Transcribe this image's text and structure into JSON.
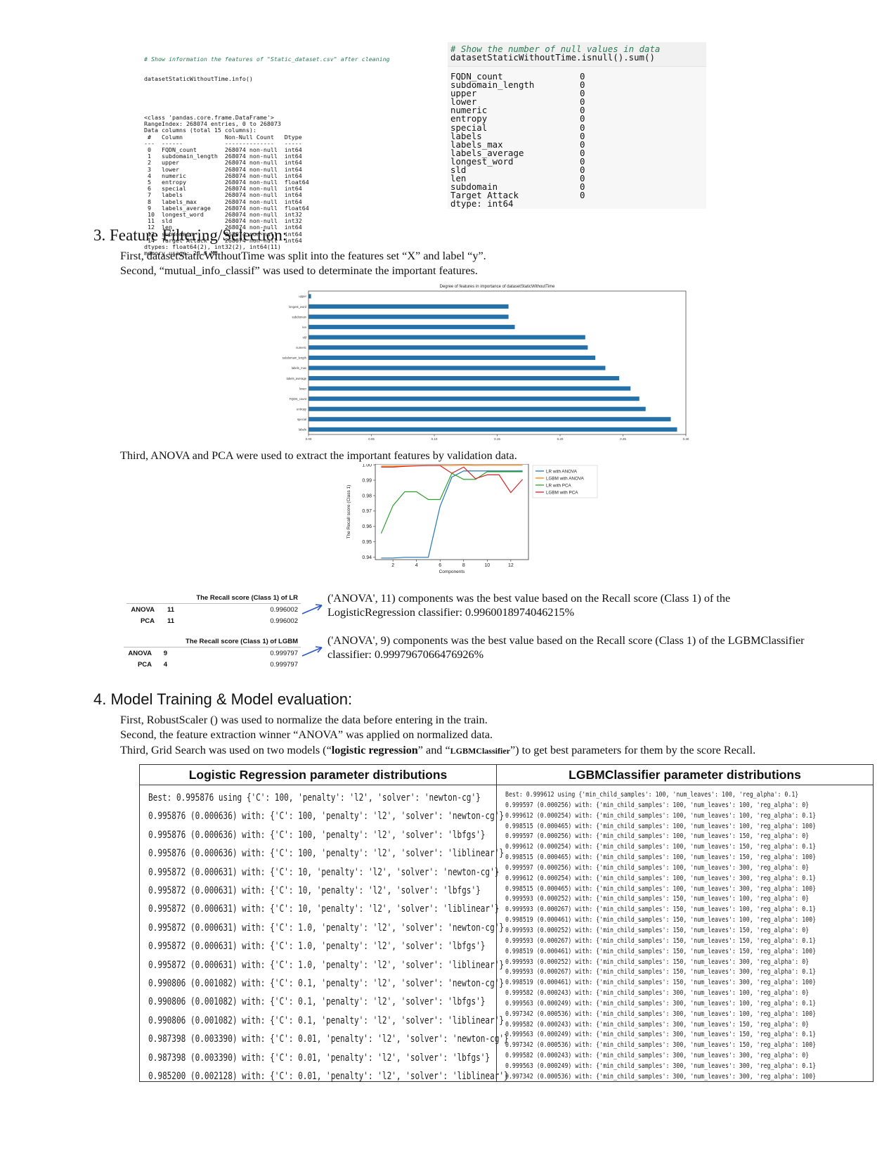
{
  "info_panel": {
    "comment": "# Show information the features of \"Static_dataset.csv\" after cleaning",
    "call": "datasetStaticWithoutTime.info()",
    "lines": [
      "<class 'pandas.core.frame.DataFrame'>",
      "RangeIndex: 268074 entries, 0 to 268073",
      "Data columns (total 15 columns):",
      " #   Column            Non-Null Count   Dtype",
      "---  ------            --------------   -----",
      " 0   FQDN_count        268074 non-null  int64",
      " 1   subdomain_length  268074 non-null  int64",
      " 2   upper             268074 non-null  int64",
      " 3   lower             268074 non-null  int64",
      " 4   numeric           268074 non-null  int64",
      " 5   entropy           268074 non-null  float64",
      " 6   special           268074 non-null  int64",
      " 7   labels            268074 non-null  int64",
      " 8   labels_max        268074 non-null  int64",
      " 9   labels_average    268074 non-null  float64",
      " 10  longest_word      268074 non-null  int32",
      " 11  sld               268074 non-null  int32",
      " 12  len               268074 non-null  int64",
      " 13  subdomain         268074 non-null  int64",
      " 14  Target Attack     268074 non-null  int64",
      "dtypes: float64(2), int32(2), int64(11)",
      "memory usage: 28.6 MB"
    ]
  },
  "null_panel": {
    "comment": "# Show the number of null values in data",
    "call": "datasetStaticWithoutTime.isnull().sum()",
    "rows": [
      {
        "field": "FQDN_count",
        "count": "0"
      },
      {
        "field": "subdomain_length",
        "count": "0"
      },
      {
        "field": "upper",
        "count": "0"
      },
      {
        "field": "lower",
        "count": "0"
      },
      {
        "field": "numeric",
        "count": "0"
      },
      {
        "field": "entropy",
        "count": "0"
      },
      {
        "field": "special",
        "count": "0"
      },
      {
        "field": "labels",
        "count": "0"
      },
      {
        "field": "labels_max",
        "count": "0"
      },
      {
        "field": "labels_average",
        "count": "0"
      },
      {
        "field": "longest_word",
        "count": "0"
      },
      {
        "field": "sld",
        "count": "0"
      },
      {
        "field": "len",
        "count": "0"
      },
      {
        "field": "subdomain",
        "count": "0"
      },
      {
        "field": "Target Attack",
        "count": "0"
      }
    ],
    "dtype": "dtype: int64"
  },
  "section3": {
    "heading": "3.   Feature Filtering/Selection:",
    "p1": "First, datasetStaticWithoutTime was split into the features set “X” and label “y”.",
    "p2": "Second, “mutual_info_classif” was used to determinate the important features.",
    "p3": "Third, ANOVA and PCA were used to extract the important features by validation data."
  },
  "chart_data": [
    {
      "type": "bar",
      "orientation": "horizontal",
      "title": "Degree of features in importance of datasetStaticWithoutTime",
      "categories": [
        "upper",
        "longest_word",
        "subdomain",
        "len",
        "sld",
        "numeric",
        "subdomain_length",
        "labels_max",
        "labels_average",
        "lower",
        "FQDN_count",
        "entropy",
        "special",
        "labels"
      ],
      "values": [
        0.002,
        0.159,
        0.159,
        0.164,
        0.22,
        0.222,
        0.228,
        0.236,
        0.247,
        0.256,
        0.263,
        0.268,
        0.288,
        0.293
      ],
      "xlim": [
        0,
        0.3
      ],
      "xticks": [
        "0.00",
        "0.05",
        "0.10",
        "0.15",
        "0.20",
        "0.25",
        "0.30"
      ],
      "color": "#2470a8",
      "grid": false
    },
    {
      "type": "line",
      "xlabel": "Components",
      "ylabel": "The Recall score (Class 1)",
      "xlim": [
        0.5,
        13.5
      ],
      "ylim": [
        0.9385,
        1.0005
      ],
      "xticks": [
        "2",
        "4",
        "6",
        "8",
        "10",
        "12"
      ],
      "yticks": [
        "0.94",
        "0.95",
        "0.96",
        "0.97",
        "0.98",
        "0.99",
        "1.00"
      ],
      "x": [
        1,
        2,
        3,
        4,
        5,
        6,
        7,
        8,
        9,
        10,
        11,
        12,
        13
      ],
      "legend_position": "outside-right",
      "series": [
        {
          "name": "LR with ANOVA",
          "color": "#1f77b4",
          "values": [
            0.9395,
            0.9395,
            0.94,
            0.94,
            0.94,
            0.973,
            0.992,
            0.996,
            0.996,
            0.996,
            0.996,
            0.996,
            0.996
          ]
        },
        {
          "name": "LGBM with ANOVA",
          "color": "#ff7f0e",
          "values": [
            0.9992,
            0.9992,
            0.9993,
            0.9994,
            0.9995,
            0.9996,
            0.9996,
            0.9998,
            0.9996,
            0.9997,
            0.9997,
            0.9997,
            0.9997
          ]
        },
        {
          "name": "LR with PCA",
          "color": "#2ca02c",
          "values": [
            0.9555,
            0.9735,
            0.9825,
            0.9825,
            0.9775,
            0.9775,
            0.9945,
            0.9905,
            0.9905,
            0.9955,
            0.9955,
            0.9955,
            0.9955
          ]
        },
        {
          "name": "LGBM with PCA",
          "color": "#d62728",
          "values": [
            0.9985,
            0.9985,
            0.999,
            0.9993,
            0.9995,
            0.9995,
            0.9945,
            0.9985,
            0.991,
            0.9935,
            0.9935,
            0.982,
            0.9905
          ]
        }
      ]
    }
  ],
  "recall_lr": {
    "title": "The Recall score (Class 1) of LR",
    "rows": [
      {
        "name": "ANOVA",
        "n": "11",
        "score": "0.996002"
      },
      {
        "name": "PCA",
        "n": "11",
        "score": "0.996002"
      }
    ],
    "note": "('ANOVA', 11) components was the best value based on the Recall score (Class 1) of the LogisticRegression classifier: 0.9960018974046215%"
  },
  "recall_lgbm": {
    "title": "The Recall score (Class 1) of LGBM",
    "rows": [
      {
        "name": "ANOVA",
        "n": "9",
        "score": "0.999797"
      },
      {
        "name": "PCA",
        "n": "4",
        "score": "0.999797"
      }
    ],
    "note": "('ANOVA', 9) components was the best value based on the Recall score (Class 1) of the LGBMClassifier classifier: 0.9997967066476926%"
  },
  "section4": {
    "heading": "4.   Model Training & Model evaluation:",
    "p1": "First, RobustScaler () was used to normalize the data before entering in the train.",
    "p2": "Second, the feature extraction winner “ANOVA” was applied on normalized data.",
    "p3_a": "Third, Grid Search was used on two models (“",
    "p3_b": "logistic regression",
    "p3_c": "” and “",
    "p3_d": "LGBMClassifier",
    "p3_e": "”) to get best parameters for them by the score Recall."
  },
  "param_table": {
    "left_header": "Logistic Regression parameter distributions",
    "right_header": "LGBMClassifier  parameter distributions",
    "left_lines": [
      "Best: 0.995876 using {'C': 100, 'penalty': 'l2', 'solver': 'newton-cg'}",
      "0.995876 (0.000636) with: {'C': 100, 'penalty': 'l2', 'solver': 'newton-cg'}",
      "0.995876 (0.000636) with: {'C': 100, 'penalty': 'l2', 'solver': 'lbfgs'}",
      "0.995876 (0.000636) with: {'C': 100, 'penalty': 'l2', 'solver': 'liblinear'}",
      "0.995872 (0.000631) with: {'C': 10, 'penalty': 'l2', 'solver': 'newton-cg'}",
      "0.995872 (0.000631) with: {'C': 10, 'penalty': 'l2', 'solver': 'lbfgs'}",
      "0.995872 (0.000631) with: {'C': 10, 'penalty': 'l2', 'solver': 'liblinear'}",
      "0.995872 (0.000631) with: {'C': 1.0, 'penalty': 'l2', 'solver': 'newton-cg'}",
      "0.995872 (0.000631) with: {'C': 1.0, 'penalty': 'l2', 'solver': 'lbfgs'}",
      "0.995872 (0.000631) with: {'C': 1.0, 'penalty': 'l2', 'solver': 'liblinear'}",
      "0.990806 (0.001082) with: {'C': 0.1, 'penalty': 'l2', 'solver': 'newton-cg'}",
      "0.990806 (0.001082) with: {'C': 0.1, 'penalty': 'l2', 'solver': 'lbfgs'}",
      "0.990806 (0.001082) with: {'C': 0.1, 'penalty': 'l2', 'solver': 'liblinear'}",
      "0.987398 (0.003390) with: {'C': 0.01, 'penalty': 'l2', 'solver': 'newton-cg'}",
      "0.987398 (0.003390) with: {'C': 0.01, 'penalty': 'l2', 'solver': 'lbfgs'}",
      "0.985200 (0.002128) with: {'C': 0.01, 'penalty': 'l2', 'solver': 'liblinear'}"
    ],
    "right_lines": [
      "Best: 0.999612 using {'min_child_samples': 100, 'num_leaves': 100, 'reg_alpha': 0.1}",
      "0.999597 (0.000256) with: {'min_child_samples': 100, 'num_leaves': 100, 'reg_alpha': 0}",
      "0.999612 (0.000254) with: {'min_child_samples': 100, 'num_leaves': 100, 'reg_alpha': 0.1}",
      "0.998515 (0.000465) with: {'min_child_samples': 100, 'num_leaves': 100, 'reg_alpha': 100}",
      "0.999597 (0.000256) with: {'min_child_samples': 100, 'num_leaves': 150, 'reg_alpha': 0}",
      "0.999612 (0.000254) with: {'min_child_samples': 100, 'num_leaves': 150, 'reg_alpha': 0.1}",
      "0.998515 (0.000465) with: {'min_child_samples': 100, 'num_leaves': 150, 'reg_alpha': 100}",
      "0.999597 (0.000256) with: {'min_child_samples': 100, 'num_leaves': 300, 'reg_alpha': 0}",
      "0.999612 (0.000254) with: {'min_child_samples': 100, 'num_leaves': 300, 'reg_alpha': 0.1}",
      "0.998515 (0.000465) with: {'min_child_samples': 100, 'num_leaves': 300, 'reg_alpha': 100}",
      "0.999593 (0.000252) with: {'min_child_samples': 150, 'num_leaves': 100, 'reg_alpha': 0}",
      "0.999593 (0.000267) with: {'min_child_samples': 150, 'num_leaves': 100, 'reg_alpha': 0.1}",
      "0.998519 (0.000461) with: {'min_child_samples': 150, 'num_leaves': 100, 'reg_alpha': 100}",
      "0.999593 (0.000252) with: {'min_child_samples': 150, 'num_leaves': 150, 'reg_alpha': 0}",
      "0.999593 (0.000267) with: {'min_child_samples': 150, 'num_leaves': 150, 'reg_alpha': 0.1}",
      "0.998519 (0.000461) with: {'min_child_samples': 150, 'num_leaves': 150, 'reg_alpha': 100}",
      "0.999593 (0.000252) with: {'min_child_samples': 150, 'num_leaves': 300, 'reg_alpha': 0}",
      "0.999593 (0.000267) with: {'min_child_samples': 150, 'num_leaves': 300, 'reg_alpha': 0.1}",
      "0.998519 (0.000461) with: {'min_child_samples': 150, 'num_leaves': 300, 'reg_alpha': 100}",
      "0.999582 (0.000243) with: {'min_child_samples': 300, 'num_leaves': 100, 'reg_alpha': 0}",
      "0.999563 (0.000249) with: {'min_child_samples': 300, 'num_leaves': 100, 'reg_alpha': 0.1}",
      "0.997342 (0.000536) with: {'min_child_samples': 300, 'num_leaves': 100, 'reg_alpha': 100}",
      "0.999582 (0.000243) with: {'min_child_samples': 300, 'num_leaves': 150, 'reg_alpha': 0}",
      "0.999563 (0.000249) with: {'min_child_samples': 300, 'num_leaves': 150, 'reg_alpha': 0.1}",
      "0.997342 (0.000536) with: {'min_child_samples': 300, 'num_leaves': 150, 'reg_alpha': 100}",
      "0.999582 (0.000243) with: {'min_child_samples': 300, 'num_leaves': 300, 'reg_alpha': 0}",
      "0.999563 (0.000249) with: {'min_child_samples': 300, 'num_leaves': 300, 'reg_alpha': 0.1}",
      "0.997342 (0.000536) with: {'min_child_samples': 300, 'num_leaves': 300, 'reg_alpha': 100}"
    ]
  }
}
